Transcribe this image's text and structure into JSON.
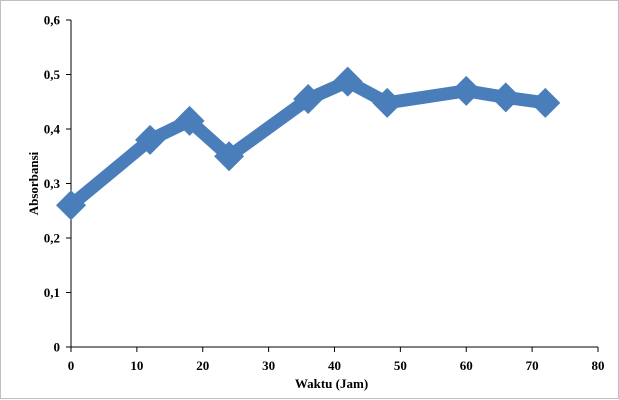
{
  "chart_data": {
    "type": "line",
    "title": "",
    "xlabel": "Waktu (Jam)",
    "ylabel": "Absorbansi",
    "xlim": [
      0,
      80
    ],
    "ylim": [
      0,
      0.6
    ],
    "x_ticks": [
      "0",
      "10",
      "20",
      "30",
      "40",
      "50",
      "60",
      "70",
      "80"
    ],
    "y_ticks": [
      "0",
      "0,1",
      "0,2",
      "0,3",
      "0,4",
      "0,5",
      "0,6"
    ],
    "grid": false,
    "legend": "none",
    "series": [
      {
        "color": "#4a7ebb",
        "marker": "diamond",
        "x": [
          0,
          12,
          18,
          24,
          36,
          42,
          48,
          60,
          66,
          72
        ],
        "y": [
          0.26,
          0.38,
          0.415,
          0.35,
          0.455,
          0.487,
          0.448,
          0.47,
          0.458,
          0.448
        ]
      }
    ]
  }
}
